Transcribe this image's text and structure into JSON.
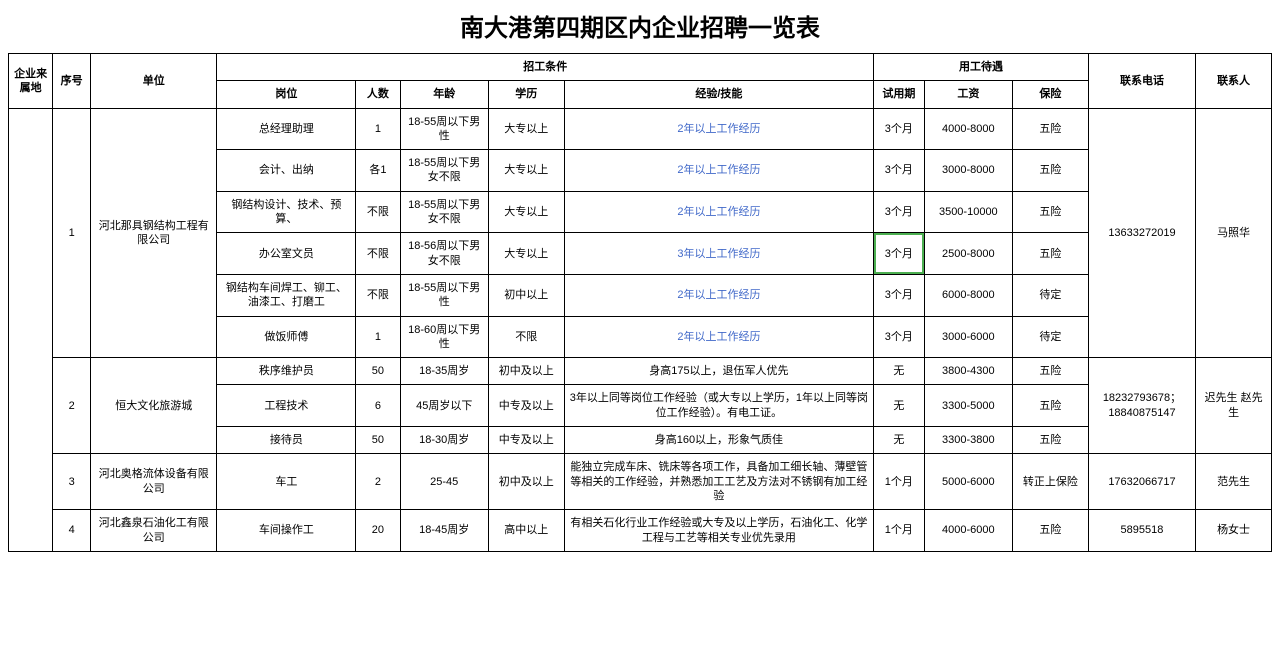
{
  "title": "南大港第四期区内企业招聘一览表",
  "headers": {
    "location": "企业来属地",
    "seq": "序号",
    "unit": "单位",
    "recruit_cond": "招工条件",
    "position": "岗位",
    "count": "人数",
    "age": "年龄",
    "education": "学历",
    "experience": "经验/技能",
    "employment": "用工待遇",
    "trial": "试用期",
    "salary": "工资",
    "insurance": "保险",
    "phone": "联系电话",
    "contact": "联系人"
  },
  "companies": [
    {
      "seq": "1",
      "unit": "河北那具钢结构工程有限公司",
      "phone": "13633272019",
      "contact": "马照华",
      "rows": [
        {
          "position": "总经理助理",
          "count": "1",
          "age": "18-55周以下男性",
          "edu": "大专以上",
          "exp": "2年以上工作经历",
          "trial": "3个月",
          "salary": "4000-8000",
          "ins": "五险"
        },
        {
          "position": "会计、出纳",
          "count": "各1",
          "age": "18-55周以下男女不限",
          "edu": "大专以上",
          "exp": "2年以上工作经历",
          "trial": "3个月",
          "salary": "3000-8000",
          "ins": "五险"
        },
        {
          "position": "钢结构设计、技术、预算、",
          "count": "不限",
          "age": "18-55周以下男女不限",
          "edu": "大专以上",
          "exp": "2年以上工作经历",
          "trial": "3个月",
          "salary": "3500-10000",
          "ins": "五险"
        },
        {
          "position": "办公室文员",
          "count": "不限",
          "age": "18-56周以下男女不限",
          "edu": "大专以上",
          "exp": "3年以上工作经历",
          "trial": "3个月",
          "salary": "2500-8000",
          "ins": "五险",
          "trial_highlight": true
        },
        {
          "position": "钢结构车间焊工、铆工、油漆工、打磨工",
          "count": "不限",
          "age": "18-55周以下男性",
          "edu": "初中以上",
          "exp": "2年以上工作经历",
          "trial": "3个月",
          "salary": "6000-8000",
          "ins": "待定"
        },
        {
          "position": "做饭师傅",
          "count": "1",
          "age": "18-60周以下男性",
          "edu": "不限",
          "exp": "2年以上工作经历",
          "trial": "3个月",
          "salary": "3000-6000",
          "ins": "待定"
        }
      ]
    },
    {
      "seq": "2",
      "unit": "恒大文化旅游城",
      "phone": "18232793678；18840875147",
      "contact": "迟先生 赵先生",
      "rows": [
        {
          "position": "秩序维护员",
          "count": "50",
          "age": "18-35周岁",
          "edu": "初中及以上",
          "exp": "身高175以上，退伍军人优先",
          "trial": "无",
          "salary": "3800-4300",
          "ins": "五险",
          "exp_plain": true
        },
        {
          "position": "工程技术",
          "count": "6",
          "age": "45周岁以下",
          "edu": "中专及以上",
          "exp": "3年以上同等岗位工作经验（或大专以上学历，1年以上同等岗位工作经验）。有电工证。",
          "trial": "无",
          "salary": "3300-5000",
          "ins": "五险",
          "exp_plain": true
        },
        {
          "position": "接待员",
          "count": "50",
          "age": "18-30周岁",
          "edu": "中专及以上",
          "exp": "身高160以上，形象气质佳",
          "trial": "无",
          "salary": "3300-3800",
          "ins": "五险",
          "exp_plain": true
        }
      ]
    },
    {
      "seq": "3",
      "unit": "河北奥格流体设备有限公司",
      "phone": "17632066717",
      "contact": "范先生",
      "rows": [
        {
          "position": "车工",
          "count": "2",
          "age": "25-45",
          "edu": "初中及以上",
          "exp": "能独立完成车床、铣床等各项工作，具备加工细长轴、薄壁管等相关的工作经验，并熟悉加工工艺及方法对不锈钢有加工经验",
          "trial": "1个月",
          "salary": "5000-6000",
          "ins": "转正上保险",
          "exp_plain": true
        }
      ]
    },
    {
      "seq": "4",
      "unit": "河北鑫泉石油化工有限公司",
      "phone": "5895518",
      "contact": "杨女士",
      "rows": [
        {
          "position": "车间操作工",
          "count": "20",
          "age": "18-45周岁",
          "edu": "高中以上",
          "exp": "有相关石化行业工作经验或大专及以上学历，石油化工、化学工程与工艺等相关专业优先录用",
          "trial": "1个月",
          "salary": "4000-6000",
          "ins": "五险",
          "exp_plain": true
        }
      ]
    }
  ]
}
